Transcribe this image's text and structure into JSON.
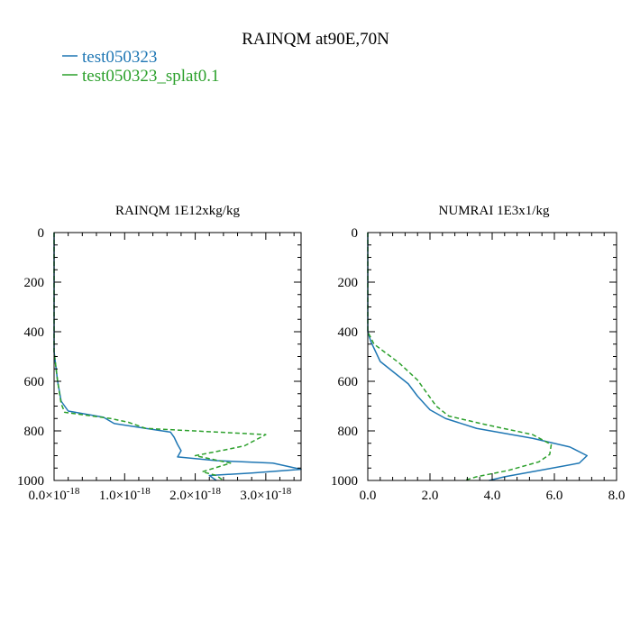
{
  "title": "RAINQM at90E,70N",
  "legend": [
    {
      "label": "test050323",
      "color": "#1f77b4",
      "dash": "solid"
    },
    {
      "label": "test050323_splat0.1",
      "color": "#2ca02c",
      "dash": "dashed"
    }
  ],
  "chart_data": [
    {
      "type": "line",
      "title": "RAINQM  1E12xkg/kg",
      "xlim": [
        0,
        3.5e-18
      ],
      "ylim": [
        1000,
        0
      ],
      "y_inverted": true,
      "x_ticks": [
        {
          "value": 0,
          "mant": "0.0",
          "exp": "-18"
        },
        {
          "value": 1e-18,
          "mant": "1.0",
          "exp": "-18"
        },
        {
          "value": 2e-18,
          "mant": "2.0",
          "exp": "-18"
        },
        {
          "value": 3e-18,
          "mant": "3.0",
          "exp": "-18"
        }
      ],
      "y_ticks": [
        0,
        200,
        400,
        600,
        800,
        1000
      ],
      "grid": false,
      "series": [
        {
          "name": "test050323",
          "color": "#1f77b4",
          "points": [
            [
              0,
              0
            ],
            [
              0,
              480
            ],
            [
              5e-20,
              600
            ],
            [
              1e-19,
              680
            ],
            [
              2e-19,
              720
            ],
            [
              7e-19,
              745
            ],
            [
              8.5e-19,
              770
            ],
            [
              1.3e-18,
              790
            ],
            [
              1.65e-18,
              805
            ],
            [
              1.7e-18,
              825
            ],
            [
              1.75e-18,
              855
            ],
            [
              1.8e-18,
              880
            ],
            [
              1.75e-18,
              905
            ],
            [
              2.3e-18,
              920
            ],
            [
              3.1e-18,
              930
            ],
            [
              3.5e-18,
              955
            ],
            [
              2.8e-18,
              970
            ],
            [
              2.2e-18,
              980
            ],
            [
              2.3e-18,
              1000
            ]
          ]
        },
        {
          "name": "test050323_splat0.1",
          "color": "#2ca02c",
          "points": [
            [
              0,
              0
            ],
            [
              0,
              480
            ],
            [
              5e-20,
              600
            ],
            [
              1e-19,
              690
            ],
            [
              1.5e-19,
              725
            ],
            [
              8e-19,
              750
            ],
            [
              1.05e-18,
              765
            ],
            [
              1.3e-18,
              790
            ],
            [
              3e-18,
              815
            ],
            [
              2.7e-18,
              860
            ],
            [
              2.45e-18,
              875
            ],
            [
              2e-18,
              900
            ],
            [
              2.5e-18,
              930
            ],
            [
              2.1e-18,
              965
            ],
            [
              2.3e-18,
              980
            ],
            [
              2.4e-18,
              1000
            ]
          ]
        }
      ]
    },
    {
      "type": "line",
      "title": "NUMRAI  1E3x1/kg",
      "xlim": [
        0,
        8
      ],
      "ylim": [
        1000,
        0
      ],
      "y_inverted": true,
      "x_ticks": [
        {
          "value": 0,
          "mant": "0.0"
        },
        {
          "value": 2,
          "mant": "2.0"
        },
        {
          "value": 4,
          "mant": "4.0"
        },
        {
          "value": 6,
          "mant": "6.0"
        },
        {
          "value": 8,
          "mant": "8.0"
        }
      ],
      "y_ticks": [
        0,
        200,
        400,
        600,
        800,
        1000
      ],
      "grid": false,
      "series": [
        {
          "name": "test050323",
          "color": "#1f77b4",
          "points": [
            [
              0,
              0
            ],
            [
              0,
              400
            ],
            [
              0.1,
              440
            ],
            [
              0.4,
              520
            ],
            [
              1.3,
              610
            ],
            [
              1.6,
              660
            ],
            [
              2.0,
              715
            ],
            [
              2.5,
              750
            ],
            [
              3.5,
              790
            ],
            [
              5.3,
              830
            ],
            [
              6.5,
              865
            ],
            [
              7.05,
              900
            ],
            [
              6.8,
              930
            ],
            [
              5.5,
              960
            ],
            [
              4.4,
              985
            ],
            [
              3.9,
              1000
            ]
          ]
        },
        {
          "name": "test050323_splat0.1",
          "color": "#2ca02c",
          "points": [
            [
              0,
              0
            ],
            [
              0,
              400
            ],
            [
              0.2,
              450
            ],
            [
              1.0,
              525
            ],
            [
              1.6,
              595
            ],
            [
              2.2,
              700
            ],
            [
              2.6,
              740
            ],
            [
              3.8,
              775
            ],
            [
              5.3,
              815
            ],
            [
              5.9,
              855
            ],
            [
              5.85,
              895
            ],
            [
              5.5,
              925
            ],
            [
              4.5,
              960
            ],
            [
              3.5,
              985
            ],
            [
              3.1,
              1000
            ]
          ]
        }
      ]
    }
  ]
}
